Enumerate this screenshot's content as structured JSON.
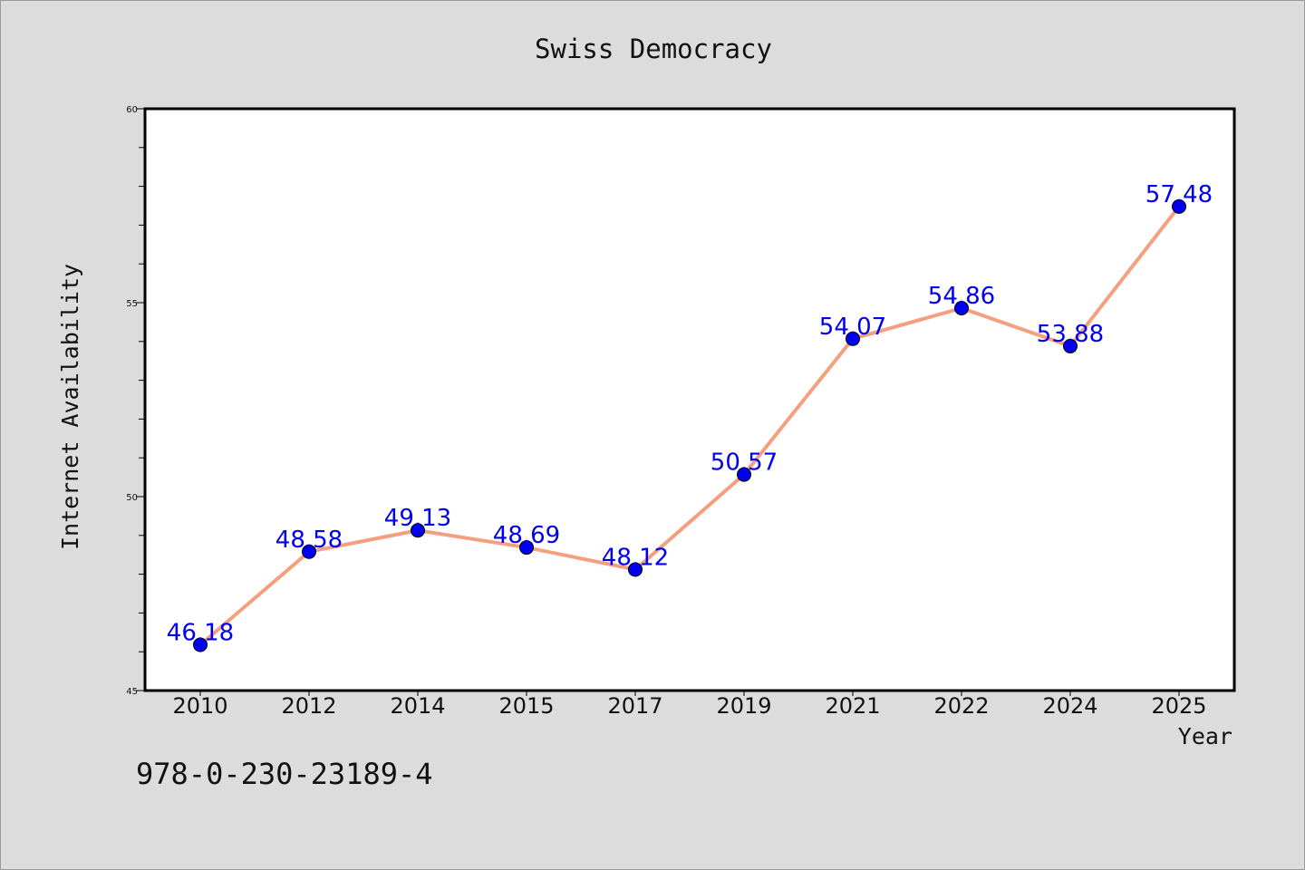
{
  "chart_data": {
    "type": "line",
    "title": "Swiss Democracy",
    "xlabel": "Year",
    "ylabel": "Internet Availability",
    "categories": [
      "2010",
      "2012",
      "2014",
      "2015",
      "2017",
      "2019",
      "2021",
      "2022",
      "2024",
      "2025"
    ],
    "series": [
      {
        "values": [
          46.18,
          48.58,
          49.13,
          48.69,
          48.12,
          50.57,
          54.07,
          54.86,
          53.88,
          57.48
        ],
        "labels": [
          "46.18",
          "48.58",
          "49.13",
          "48.69",
          "48.12",
          "50.57",
          "54.07",
          "54.86",
          "53.88",
          "57.48"
        ]
      }
    ],
    "ylim": [
      45,
      60
    ],
    "yticks": [
      "45",
      "50",
      "55",
      "60"
    ],
    "grid": false,
    "colors": {
      "line": "#f4a07e",
      "marker": "#0000ee",
      "label": "#0000ee",
      "background": "#dcdcdc",
      "plot_background": "#ffffff"
    }
  },
  "footer": {
    "isbn": "978-0-230-23189-4"
  }
}
